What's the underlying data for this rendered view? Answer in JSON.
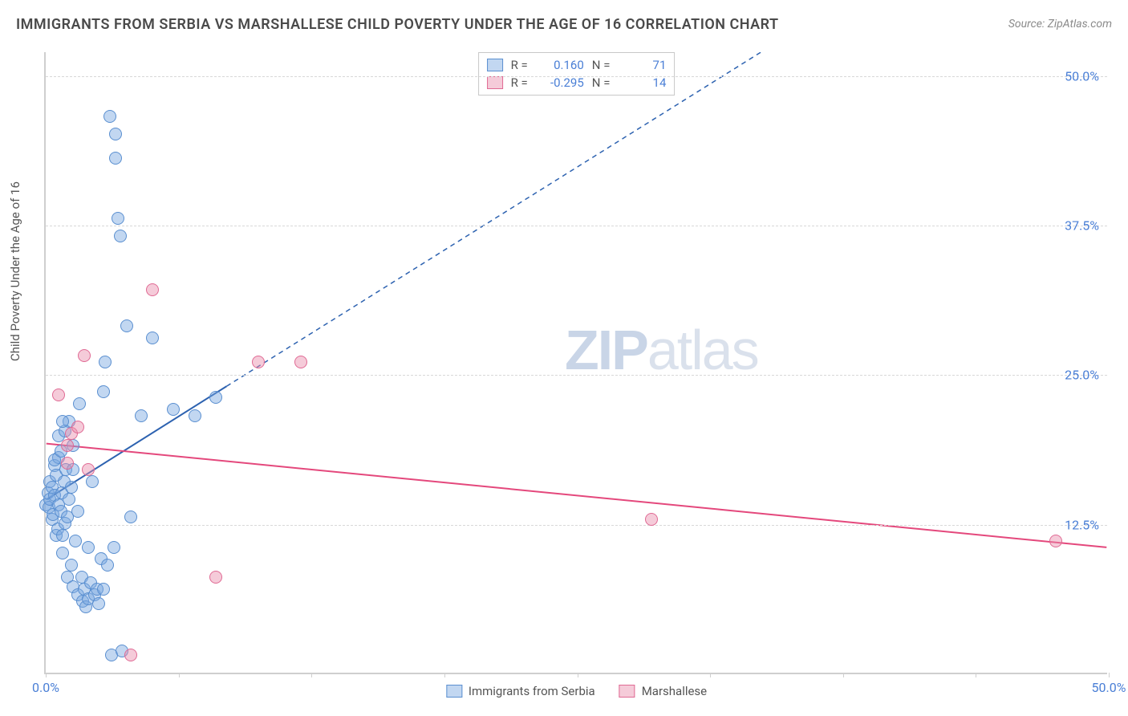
{
  "title": "IMMIGRANTS FROM SERBIA VS MARSHALLESE CHILD POVERTY UNDER THE AGE OF 16 CORRELATION CHART",
  "source": "Source: ZipAtlas.com",
  "ylabel": "Child Poverty Under the Age of 16",
  "watermark_bold": "ZIP",
  "watermark_rest": "atlas",
  "chart": {
    "type": "scatter",
    "xlim": [
      0,
      50
    ],
    "ylim": [
      0,
      52
    ],
    "xtick_positions": [
      0,
      6.25,
      12.5,
      18.75,
      25,
      31.25,
      37.5,
      43.75,
      50
    ],
    "xtick_labels": {
      "0": "0.0%",
      "50": "50.0%"
    },
    "ytick_positions": [
      12.5,
      25,
      37.5,
      50
    ],
    "ytick_labels": {
      "12.5": "12.5%",
      "25": "25.0%",
      "37.5": "37.5%",
      "50": "50.0%"
    },
    "grid_color": "#d8d8d8",
    "axis_color": "#cfcfcf",
    "background_color": "#ffffff",
    "marker_radius": 8,
    "series": [
      {
        "name": "Immigrants from Serbia",
        "color_fill": "rgba(120,167,224,0.45)",
        "color_stroke": "#5a8fd0",
        "R": "0.160",
        "N": "71",
        "trend": {
          "x1": 0,
          "y1": 14.5,
          "x2_solid": 8.5,
          "y2_solid": 24.0,
          "x2_dashed": 40,
          "y2_dashed": 59,
          "stroke": "#2d62b0",
          "stroke_width": 2
        },
        "points": [
          [
            0.0,
            14.0
          ],
          [
            0.1,
            15.0
          ],
          [
            0.15,
            13.8
          ],
          [
            0.2,
            14.5
          ],
          [
            0.2,
            16.0
          ],
          [
            0.3,
            12.8
          ],
          [
            0.3,
            15.5
          ],
          [
            0.35,
            13.2
          ],
          [
            0.4,
            14.8
          ],
          [
            0.4,
            17.3
          ],
          [
            0.5,
            11.5
          ],
          [
            0.5,
            16.5
          ],
          [
            0.55,
            12.0
          ],
          [
            0.6,
            14.0
          ],
          [
            0.6,
            18.0
          ],
          [
            0.7,
            13.5
          ],
          [
            0.75,
            15.0
          ],
          [
            0.8,
            10.0
          ],
          [
            0.8,
            11.5
          ],
          [
            0.85,
            16.0
          ],
          [
            0.9,
            12.5
          ],
          [
            0.95,
            17.0
          ],
          [
            1.0,
            8.0
          ],
          [
            1.0,
            13.0
          ],
          [
            1.1,
            14.5
          ],
          [
            1.1,
            21.0
          ],
          [
            1.2,
            9.0
          ],
          [
            1.2,
            15.5
          ],
          [
            1.3,
            7.2
          ],
          [
            1.3,
            17.0
          ],
          [
            1.4,
            11.0
          ],
          [
            1.5,
            6.5
          ],
          [
            1.5,
            13.5
          ],
          [
            1.6,
            22.5
          ],
          [
            1.7,
            8.0
          ],
          [
            1.75,
            6.0
          ],
          [
            1.8,
            7.0
          ],
          [
            1.9,
            5.5
          ],
          [
            2.0,
            6.2
          ],
          [
            2.0,
            10.5
          ],
          [
            2.1,
            7.5
          ],
          [
            2.2,
            16.0
          ],
          [
            2.3,
            6.5
          ],
          [
            2.4,
            7.0
          ],
          [
            2.5,
            5.8
          ],
          [
            2.6,
            9.5
          ],
          [
            2.7,
            7.0
          ],
          [
            2.7,
            23.5
          ],
          [
            2.8,
            26.0
          ],
          [
            2.9,
            9.0
          ],
          [
            3.0,
            46.5
          ],
          [
            3.1,
            1.5
          ],
          [
            3.2,
            10.5
          ],
          [
            3.3,
            45.0
          ],
          [
            3.3,
            43.0
          ],
          [
            3.4,
            38.0
          ],
          [
            3.5,
            36.5
          ],
          [
            3.6,
            1.8
          ],
          [
            3.8,
            29.0
          ],
          [
            4.0,
            13.0
          ],
          [
            4.5,
            21.5
          ],
          [
            5.0,
            28.0
          ],
          [
            6.0,
            22.0
          ],
          [
            7.0,
            21.5
          ],
          [
            8.0,
            23.0
          ],
          [
            0.6,
            19.8
          ],
          [
            0.9,
            20.2
          ],
          [
            1.3,
            19.0
          ],
          [
            0.4,
            17.8
          ],
          [
            0.7,
            18.5
          ],
          [
            0.8,
            21.0
          ]
        ]
      },
      {
        "name": "Marshallese",
        "color_fill": "rgba(232,140,170,0.45)",
        "color_stroke": "#e06a94",
        "R": "-0.295",
        "N": "14",
        "trend": {
          "x1": 0,
          "y1": 19.2,
          "x2_solid": 50,
          "y2_solid": 10.5,
          "stroke": "#e4487c",
          "stroke_width": 2
        },
        "points": [
          [
            0.6,
            23.2
          ],
          [
            1.0,
            19.0
          ],
          [
            1.2,
            20.0
          ],
          [
            1.5,
            20.5
          ],
          [
            1.8,
            26.5
          ],
          [
            2.0,
            17.0
          ],
          [
            4.0,
            1.5
          ],
          [
            5.0,
            32.0
          ],
          [
            8.0,
            8.0
          ],
          [
            10.0,
            26.0
          ],
          [
            12.0,
            26.0
          ],
          [
            28.5,
            12.8
          ],
          [
            47.5,
            11.0
          ],
          [
            1.0,
            17.5
          ]
        ]
      }
    ]
  },
  "legend_top": {
    "R_label": "R =",
    "N_label": "N ="
  },
  "legend_bottom": [
    {
      "swatch": "blue",
      "label": "Immigrants from Serbia"
    },
    {
      "swatch": "pink",
      "label": "Marshallese"
    }
  ]
}
